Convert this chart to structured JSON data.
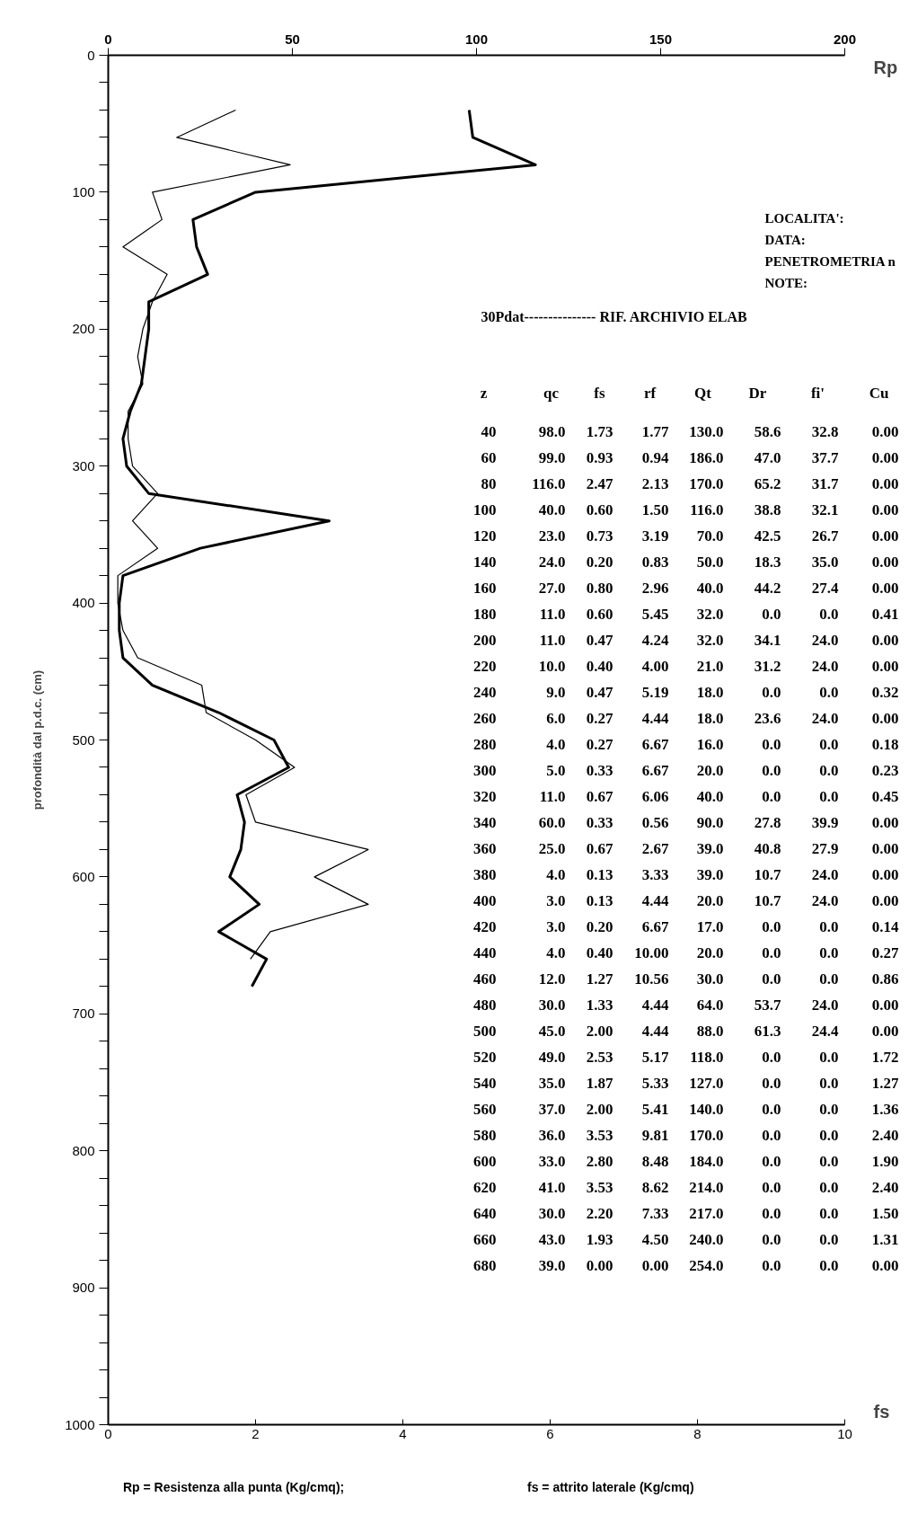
{
  "chart_data": {
    "type": "line",
    "orientation": "horizontal",
    "x": [
      40,
      60,
      80,
      100,
      120,
      140,
      160,
      180,
      200,
      220,
      240,
      260,
      280,
      300,
      320,
      340,
      360,
      380,
      400,
      420,
      440,
      460,
      480,
      500,
      520,
      540,
      560,
      580,
      600,
      620,
      640,
      660,
      680
    ],
    "series": [
      {
        "axis": "x2",
        "color": "#000000",
        "values": [
          98.0,
          99.0,
          116.0,
          40.0,
          23.0,
          24.0,
          27.0,
          11.0,
          11.0,
          10.0,
          9.0,
          6.0,
          4.0,
          5.0,
          11.0,
          60.0,
          25.0,
          4.0,
          3.0,
          3.0,
          4.0,
          12.0,
          30.0,
          45.0,
          49.0,
          35.0,
          37.0,
          36.0,
          33.0,
          41.0,
          30.0,
          43.0,
          39.0
        ]
      },
      {
        "color": "#000000",
        "values": [
          1.73,
          0.93,
          2.47,
          0.6,
          0.73,
          0.2,
          0.8,
          0.6,
          0.47,
          0.4,
          0.47,
          0.27,
          0.27,
          0.33,
          0.67,
          0.33,
          0.67,
          0.13,
          0.13,
          0.2,
          0.4,
          1.27,
          1.33,
          2.0,
          2.53,
          1.87,
          2.0,
          3.53,
          2.8,
          3.53,
          2.2,
          1.93,
          null
        ]
      }
    ],
    "ylim": [
      1000,
      0
    ],
    "yticks": [
      0,
      {
        "value": 20,
        "label": null
      },
      {
        "value": 40,
        "label": null
      },
      {
        "value": 60,
        "label": null
      },
      {
        "value": 80,
        "label": null
      },
      100,
      {
        "value": 120,
        "label": null
      },
      {
        "value": 140,
        "label": null
      },
      {
        "value": 160,
        "label": null
      },
      {
        "value": 180,
        "label": null
      },
      200,
      {
        "value": 220,
        "label": null
      },
      {
        "value": 240,
        "label": null
      },
      {
        "value": 260,
        "label": null
      },
      {
        "value": 280,
        "label": null
      },
      300,
      {
        "value": 320,
        "label": null
      },
      {
        "value": 340,
        "label": null
      },
      {
        "value": 360,
        "label": null
      },
      {
        "value": 380,
        "label": null
      },
      400,
      {
        "value": 420,
        "label": null
      },
      {
        "value": 440,
        "label": null
      },
      {
        "value": 460,
        "label": null
      },
      {
        "value": 480,
        "label": null
      },
      500,
      {
        "value": 520,
        "label": null
      },
      {
        "value": 540,
        "label": null
      },
      {
        "value": 560,
        "label": null
      },
      {
        "value": 580,
        "label": null
      },
      600,
      {
        "value": 620,
        "label": null
      },
      {
        "value": 640,
        "label": null
      },
      {
        "value": 660,
        "label": null
      },
      {
        "value": 680,
        "label": null
      },
      700,
      {
        "value": 720,
        "label": null
      },
      {
        "value": 740,
        "label": null
      },
      {
        "value": 760,
        "label": null
      },
      {
        "value": 780,
        "label": null
      },
      800,
      {
        "value": 820,
        "label": null
      },
      {
        "value": 840,
        "label": null
      },
      {
        "value": 860,
        "label": null
      },
      {
        "value": 880,
        "label": null
      },
      900,
      {
        "value": 920,
        "label": null
      },
      {
        "value": 940,
        "label": null
      },
      {
        "value": 960,
        "label": null
      },
      {
        "value": 980,
        "label": null
      },
      1000
    ],
    "xlim": [
      0,
      10
    ],
    "xticks": [
      0,
      2,
      4,
      6,
      8,
      10
    ],
    "x2lim": [
      0,
      200
    ],
    "x2ticks": [
      0,
      50,
      100,
      150,
      200
    ],
    "xlabel": "fs",
    "x2label": "Rp",
    "ylabel": "profondità dal p.d.c. (cm)",
    "annotations": [
      "LOCALITA':",
      "DATA:",
      "PENETROMETRIA n",
      "NOTE:",
      "30Pdat--------------- RIF. ARCHIVIO ELAB",
      "z qc fs rf Qt Dr fi' Cu",
      "40 98.0 1.73 1.77 130.0 58.6 32.8 0.00",
      "60 99.0 0.93 0.94 186.0 47.0 37.7 0.00",
      "80 116.0 2.47 2.13 170.0 65.2 31.7 0.00",
      "100 40.0 0.60 1.50 116.0 38.8 32.1 0.00",
      "120 23.0 0.73 3.19 70.0 42.5 26.7 0.00",
      "140 24.0 0.20 0.83 50.0 18.3 35.0 0.00",
      "160 27.0 0.80 2.96 40.0 44.2 27.4 0.00",
      "180 11.0 0.60 5.45 32.0 0.0 0.0 0.41",
      "200 11.0 0.47 4.24 32.0 34.1 24.0 0.00",
      "220 10.0 0.40 4.00 21.0 31.2 24.0 0.00",
      "240 9.0 0.47 5.19 18.0 0.0 0.0 0.32",
      "260 6.0 0.27 4.44 18.0 23.6 24.0 0.00",
      "280 4.0 0.27 6.67 16.0 0.0 0.0 0.18",
      "300 5.0 0.33 6.67 20.0 0.0 0.0 0.23",
      "320 11.0 0.67 6.06 40.0 0.0 0.0 0.45",
      "340 60.0 0.33 0.56 90.0 27.8 39.9 0.00",
      "360 25.0 0.67 2.67 39.0 40.8 27.9 0.00",
      "380 4.0 0.13 3.33 39.0 10.7 24.0 0.00",
      "400 3.0 0.13 4.44 20.0 10.7 24.0 0.00",
      "420 3.0 0.20 6.67 17.0 0.0 0.0 0.14",
      "440 4.0 0.40 10.00 20.0 0.0 0.0 0.27",
      "460 12.0 1.27 10.56 30.0 0.0 0.0 0.86",
      "480 30.0 1.33 4.44 64.0 53.7 24.0 0.00",
      "500 45.0 2.00 4.44 88.0 61.3 24.4 0.00",
      "520 49.0 2.53 5.17 118.0 0.0 0.0 1.72",
      "540 35.0 1.87 5.33 127.0 0.0 0.0 1.27",
      "560 37.0 2.00 5.41 140.0 0.0 0.0 1.36",
      "580 36.0 3.53 9.81 170.0 0.0 0.0 2.40",
      "600 33.0 2.80 8.48 184.0 0.0 0.0 1.90",
      "620 41.0 3.53 8.62 214.0 0.0 0.0 2.40",
      "640 30.0 2.20 7.33 217.0 0.0 0.0 1.50",
      "660 43.0 1.93 4.50 240.0 0.0 0.0 1.31",
      "680 39.0 0.00 0.00 254.0 0.0 0.0 0.00",
      "Rp = Resistenza alla punta (Kg/cmq);",
      "fs = attrito laterale (Kg/cmq)"
    ]
  }
}
